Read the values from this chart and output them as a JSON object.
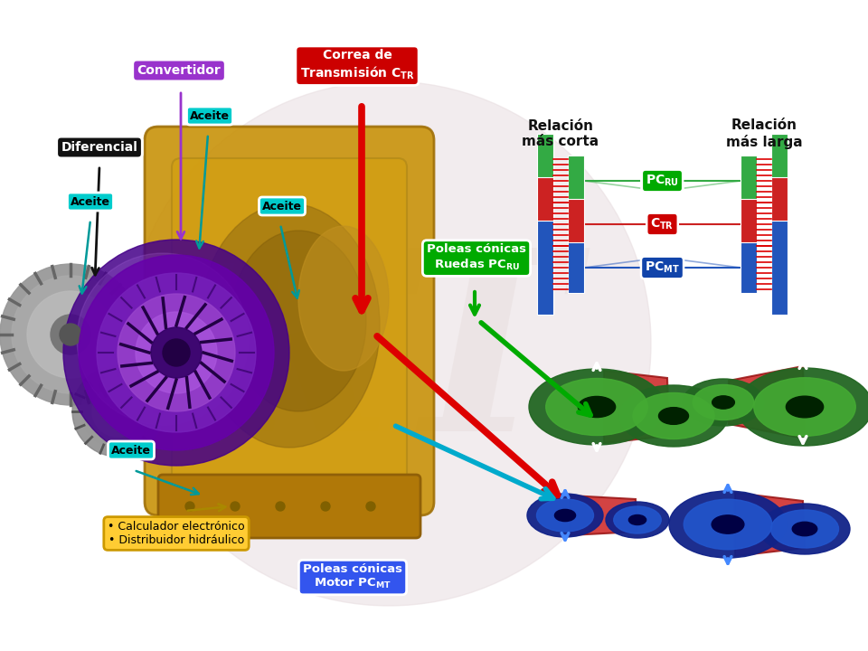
{
  "background_color": "#ffffff",
  "watermark_color": "#e8dde0",
  "labels": {
    "convertidor": "Convertidor",
    "diferencial": "Diferencial",
    "aceite": "Aceite",
    "correa": "Correa de\nTransmisión Cₜᵣ",
    "poleas_ruedas": "Poleas cónicas\nRuedas PCᴿᵁ",
    "poleas_motor": "Poleas cónicas\nMotor PCᴹᵀ",
    "calculador": "• Calculador electrónico\n• Distribuidor hidráulico",
    "relacion_corta": "Relación\nmás corta",
    "relacion_larga": "Relación\nmás larga"
  },
  "colors": {
    "convertidor_bg": "#9933cc",
    "diferencial_bg": "#111111",
    "aceite_bg": "#00cccc",
    "aceite_text": "#000000",
    "correa_bg": "#cc0000",
    "poleas_ruedas_bg": "#00aa00",
    "poleas_motor_bg": "#3355ee",
    "calculador_bg": "#ffcc33",
    "calculador_border": "#cc9900",
    "pc_ru_bg": "#00aa00",
    "c_tr_bg": "#cc0000",
    "pc_mt_bg": "#1144bb",
    "pulley_green": "#44aa33",
    "pulley_green_light": "#66cc44",
    "pulley_blue": "#2255cc",
    "pulley_blue_light": "#4488ee",
    "belt_red": "#cc2222",
    "belt_red_dark": "#991111",
    "arrow_red": "#dd0000",
    "arrow_green": "#00aa00",
    "arrow_cyan": "#00aacc",
    "arrow_teal": "#009999"
  }
}
